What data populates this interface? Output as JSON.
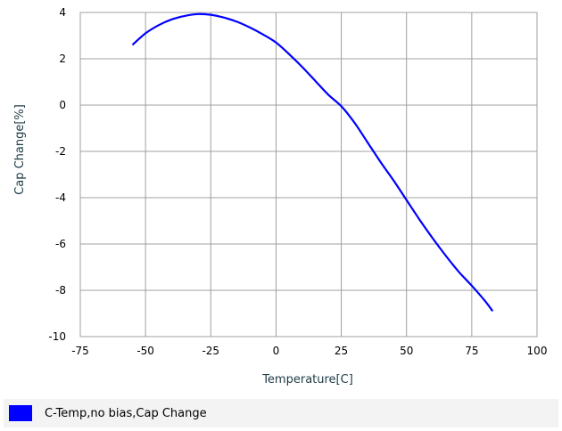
{
  "chart_data": {
    "type": "line",
    "title": "",
    "xlabel": "Temperature[C]",
    "ylabel": "Cap Change[%]",
    "xlim": [
      -75,
      100
    ],
    "ylim": [
      -10,
      4
    ],
    "x_ticks": [
      -75,
      -50,
      -25,
      0,
      25,
      50,
      75,
      100
    ],
    "x_tick_labels": [
      "-75",
      "-50",
      "-25",
      "0",
      "25",
      "50",
      "75",
      "100"
    ],
    "y_ticks": [
      -10,
      -8,
      -6,
      -4,
      -2,
      0,
      2,
      4
    ],
    "y_tick_labels": [
      "-10",
      "-8",
      "-6",
      "-4",
      "-2",
      "0",
      "2",
      "4"
    ],
    "grid": true,
    "legend_position": "bottom",
    "series": [
      {
        "name": "C-Temp,no bias,Cap Change",
        "color": "#0000ff",
        "x": [
          -55,
          -50,
          -45,
          -40,
          -35,
          -30,
          -25,
          -20,
          -15,
          -10,
          -5,
          0,
          5,
          10,
          15,
          20,
          25,
          30,
          35,
          40,
          45,
          50,
          55,
          60,
          65,
          70,
          75,
          80,
          83
        ],
        "y": [
          2.6,
          3.1,
          3.45,
          3.7,
          3.85,
          3.93,
          3.9,
          3.78,
          3.6,
          3.35,
          3.05,
          2.7,
          2.2,
          1.65,
          1.05,
          0.45,
          -0.05,
          -0.75,
          -1.6,
          -2.45,
          -3.25,
          -4.1,
          -4.95,
          -5.75,
          -6.5,
          -7.2,
          -7.8,
          -8.45,
          -8.9
        ]
      }
    ]
  },
  "legend": {
    "label": "C-Temp,no bias,Cap Change",
    "color": "#0000ff"
  }
}
